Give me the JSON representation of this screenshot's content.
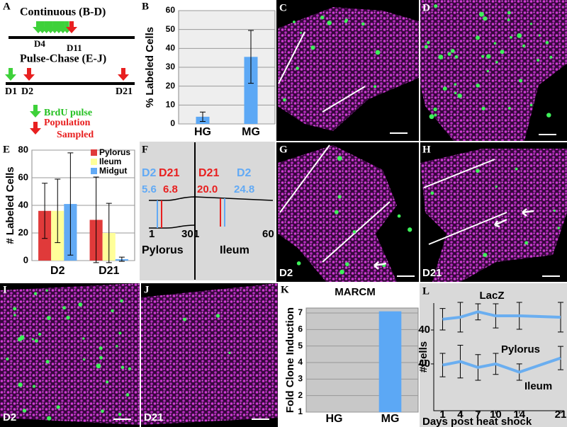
{
  "panel_letters": [
    "A",
    "B",
    "C",
    "D",
    "E",
    "F",
    "G",
    "H",
    "I",
    "J",
    "K",
    "L"
  ],
  "panel_a": {
    "continuous": "Continuous (B-D)",
    "d4": "D4",
    "d11": "D11",
    "pulse_chase": "Pulse-Chase (E-J)",
    "d1": "D1",
    "d2": "D2",
    "d21": "D21",
    "legend": [
      "BrdU pulse",
      "Population",
      "Sampled"
    ]
  },
  "panel_f": {
    "left_top": [
      "D2",
      "D21"
    ],
    "left_values": [
      "5.6",
      "6.8"
    ],
    "right_top": [
      "D21",
      "D2"
    ],
    "right_values": [
      "20.0",
      "24.8"
    ],
    "ticks": [
      "1",
      "30",
      "1",
      "60"
    ],
    "regions": [
      "Pylorus",
      "Ileum"
    ]
  },
  "micrograph_labels": {
    "G": "D2",
    "H": "D21",
    "I": "D2",
    "J": "D21"
  },
  "chart_data": [
    {
      "type": "bar",
      "ylabel": "% Labeled Cells",
      "categories": [
        "HG",
        "MG"
      ],
      "values": [
        3.8,
        35.5
      ],
      "errors": [
        2.5,
        14
      ],
      "color": "#5ca8f5",
      "ylim": [
        0,
        60
      ],
      "yticks": [
        0,
        10,
        20,
        30,
        40,
        50,
        60
      ],
      "grid": true
    },
    {
      "type": "grouped_bar",
      "ylabel": "# Labeled Cells",
      "categories": [
        "D2",
        "D21"
      ],
      "series": [
        {
          "name": "Pylorus",
          "color": "#e03a3a",
          "values": [
            36,
            29.5
          ],
          "errors": [
            20,
            31
          ]
        },
        {
          "name": "Ileum",
          "color": "#ffff99",
          "values": [
            36,
            20
          ],
          "errors": [
            23,
            21.5
          ]
        },
        {
          "name": "Midgut",
          "color": "#62aaf5",
          "values": [
            41,
            1
          ],
          "errors": [
            37,
            1.5
          ]
        }
      ],
      "ylim": [
        0,
        80
      ],
      "yticks": [
        0,
        20,
        40,
        60,
        80
      ],
      "grid": true,
      "legend": "upper right"
    },
    {
      "type": "bar",
      "title": "MARCM",
      "ylabel": "Fold Clone Induction",
      "categories": [
        "HG",
        "MG"
      ],
      "values": [
        1,
        7.1
      ],
      "color": "#5ca8f5",
      "ylim": [
        1,
        7.3
      ],
      "yticks": [
        1,
        2,
        3,
        4,
        5,
        6,
        7
      ],
      "grid": true
    },
    {
      "type": "multi_line",
      "title": "LacZ",
      "ylabel": "#Cells",
      "xlabel": "Days post heat shock",
      "x": [
        1,
        4,
        7,
        10,
        14,
        21
      ],
      "xlim": [
        -0.5,
        21.6
      ],
      "xticks": [
        1,
        4,
        7,
        10,
        14,
        21
      ],
      "color": "#6aaef0",
      "panels": [
        {
          "name": "Pylorus",
          "values": [
            56,
            59,
            67,
            61,
            61,
            59
          ],
          "errors": [
            16,
            22,
            12,
            18,
            20,
            22
          ],
          "ylim": [
            0,
            80
          ],
          "yticks": [
            40
          ]
        },
        {
          "name": "Ileum",
          "values": [
            39,
            42,
            37,
            40,
            33,
            45
          ],
          "errors": [
            10,
            14,
            11,
            9,
            7,
            10
          ],
          "ylim": [
            0,
            46
          ],
          "yticks": [
            40
          ]
        }
      ]
    }
  ]
}
